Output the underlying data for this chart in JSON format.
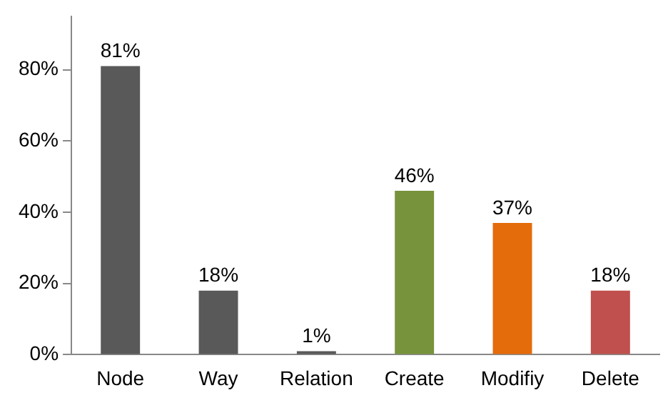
{
  "chart_data": {
    "type": "bar",
    "categories": [
      "Node",
      "Way",
      "Relation",
      "Create",
      "Modifiy",
      "Delete"
    ],
    "values": [
      81,
      18,
      1,
      46,
      37,
      18
    ],
    "colors": [
      "#595959",
      "#595959",
      "#595959",
      "#77933c",
      "#e46c0a",
      "#c0504d"
    ],
    "value_labels": [
      "81%",
      "18%",
      "1%",
      "46%",
      "37%",
      "18%"
    ],
    "ylim": [
      0,
      95
    ],
    "yticks": [
      {
        "value": 0,
        "label": "0%"
      },
      {
        "value": 20,
        "label": "20%"
      },
      {
        "value": 40,
        "label": "40%"
      },
      {
        "value": 60,
        "label": "60%"
      },
      {
        "value": 80,
        "label": "80%"
      }
    ],
    "grid": false,
    "legend": false
  }
}
